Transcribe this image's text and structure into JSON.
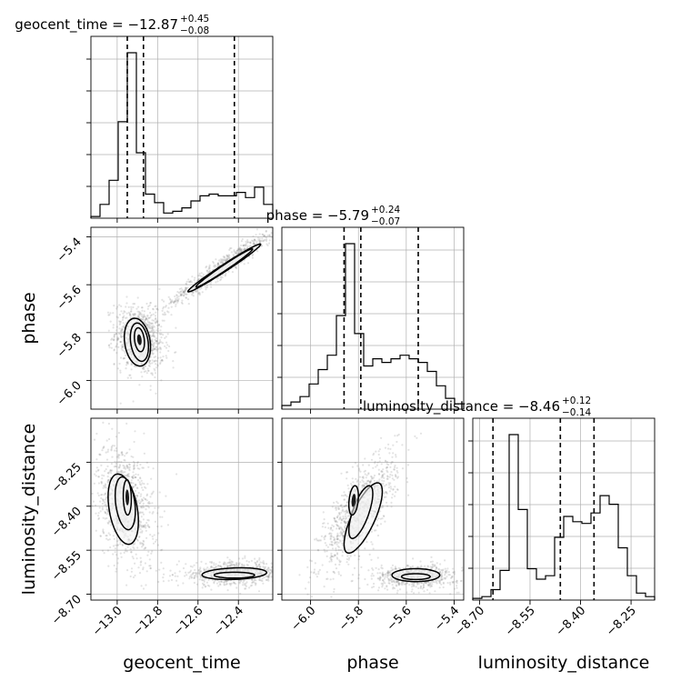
{
  "chart_data": [
    {
      "type": "histogram",
      "panel": "geocent_time",
      "title": "geocent_time = −12.87",
      "title_sup": "+0.45",
      "title_sub": "−0.08",
      "xlim": [
        -13.13,
        -12.23
      ],
      "bins": [
        -13.13,
        -13.085,
        -13.04,
        -12.995,
        -12.95,
        -12.905,
        -12.86,
        -12.815,
        -12.77,
        -12.725,
        -12.68,
        -12.635,
        -12.59,
        -12.545,
        -12.5,
        -12.455,
        -12.41,
        -12.365,
        -12.32,
        -12.275,
        -12.23
      ],
      "counts": [
        1,
        8,
        22,
        56,
        96,
        38,
        14,
        9,
        3,
        4,
        6,
        10,
        13,
        14,
        13,
        13,
        15,
        12,
        18,
        8
      ],
      "quantiles": [
        -12.95,
        -12.87,
        -12.42
      ],
      "grid": true
    },
    {
      "type": "histogram",
      "panel": "phase",
      "title": "phase = −5.79",
      "title_sup": "+0.24",
      "title_sub": "−0.07",
      "xlim": [
        -6.12,
        -5.36
      ],
      "bins": [
        -6.12,
        -6.082,
        -6.044,
        -6.006,
        -5.968,
        -5.93,
        -5.892,
        -5.854,
        -5.816,
        -5.778,
        -5.74,
        -5.702,
        -5.664,
        -5.626,
        -5.588,
        -5.55,
        -5.512,
        -5.474,
        -5.436,
        -5.398,
        -5.36
      ],
      "counts": [
        2,
        4,
        7,
        14,
        22,
        30,
        52,
        92,
        42,
        24,
        28,
        26,
        28,
        30,
        28,
        26,
        21,
        13,
        6,
        3
      ],
      "quantiles": [
        -5.86,
        -5.79,
        -5.55
      ],
      "grid": true
    },
    {
      "type": "histogram",
      "panel": "luminosity_distance",
      "title": "luminosity_distance = −8.46",
      "title_sup": "+0.12",
      "title_sub": "−0.14",
      "xlim": [
        -8.72,
        -8.18
      ],
      "bins": [
        -8.72,
        -8.693,
        -8.666,
        -8.639,
        -8.612,
        -8.585,
        -8.558,
        -8.531,
        -8.504,
        -8.477,
        -8.45,
        -8.423,
        -8.396,
        -8.369,
        -8.342,
        -8.315,
        -8.288,
        -8.261,
        -8.234,
        -8.207,
        -8.18
      ],
      "counts": [
        1,
        2,
        6,
        17,
        95,
        52,
        18,
        12,
        14,
        36,
        48,
        45,
        44,
        50,
        60,
        55,
        30,
        14,
        4,
        2
      ],
      "quantiles": [
        -8.66,
        -8.46,
        -8.36
      ],
      "grid": true
    },
    {
      "type": "scatter",
      "panel": "phase_vs_geocent_time",
      "x_param": "geocent_time",
      "y_param": "phase",
      "xlim": [
        -13.13,
        -12.23
      ],
      "ylim": [
        -6.12,
        -5.36
      ],
      "clusters": [
        {
          "x": -12.89,
          "y": -5.83,
          "sx": 0.06,
          "sy": 0.07,
          "rho": -0.2,
          "n": 900
        },
        {
          "x": -12.47,
          "y": -5.52,
          "sx": 0.15,
          "sy": 0.09,
          "rho": 0.97,
          "n": 700
        }
      ],
      "contours": [
        {
          "x": -12.89,
          "y": -5.83,
          "sx": 0.025,
          "sy": 0.05,
          "rho": -0.25
        },
        {
          "x": -12.89,
          "y": -5.84,
          "sx": 0.045,
          "sy": 0.08,
          "rho": -0.25
        },
        {
          "x": -12.9,
          "y": -5.84,
          "sx": 0.065,
          "sy": 0.1,
          "rho": -0.2
        },
        {
          "x": -12.47,
          "y": -5.53,
          "sx": 0.14,
          "sy": 0.08,
          "rho": 0.985
        },
        {
          "x": -12.47,
          "y": -5.53,
          "sx": 0.18,
          "sy": 0.1,
          "rho": 0.985
        }
      ],
      "grid": true
    },
    {
      "type": "scatter",
      "panel": "luminosity_distance_vs_geocent_time",
      "x_param": "geocent_time",
      "y_param": "luminosity_distance",
      "xlim": [
        -13.13,
        -12.23
      ],
      "ylim": [
        -8.72,
        -8.1
      ],
      "clusters": [
        {
          "x": -12.96,
          "y": -8.39,
          "sx": 0.07,
          "sy": 0.1,
          "rho": -0.3,
          "n": 900
        },
        {
          "x": -12.42,
          "y": -8.63,
          "sx": 0.14,
          "sy": 0.02,
          "rho": 0.1,
          "n": 700
        }
      ],
      "contours": [
        {
          "x": -12.95,
          "y": -8.37,
          "sx": 0.02,
          "sy": 0.06,
          "rho": -0.1
        },
        {
          "x": -12.96,
          "y": -8.39,
          "sx": 0.05,
          "sy": 0.09,
          "rho": -0.3
        },
        {
          "x": -12.97,
          "y": -8.41,
          "sx": 0.075,
          "sy": 0.12,
          "rho": -0.35
        },
        {
          "x": -12.42,
          "y": -8.635,
          "sx": 0.1,
          "sy": 0.01,
          "rho": 0.0
        },
        {
          "x": -12.42,
          "y": -8.63,
          "sx": 0.16,
          "sy": 0.02,
          "rho": 0.2
        }
      ],
      "grid": true
    },
    {
      "type": "scatter",
      "panel": "luminosity_distance_vs_phase",
      "x_param": "phase",
      "y_param": "luminosity_distance",
      "xlim": [
        -6.12,
        -5.36
      ],
      "ylim": [
        -8.72,
        -8.1
      ],
      "clusters": [
        {
          "x": -5.8,
          "y": -8.42,
          "sx": 0.08,
          "sy": 0.1,
          "rho": 0.75,
          "n": 900
        },
        {
          "x": -5.56,
          "y": -8.64,
          "sx": 0.09,
          "sy": 0.02,
          "rho": 0.0,
          "n": 600
        }
      ],
      "contours": [
        {
          "x": -5.82,
          "y": -8.38,
          "sx": 0.02,
          "sy": 0.05,
          "rho": 0.3
        },
        {
          "x": -5.79,
          "y": -8.42,
          "sx": 0.05,
          "sy": 0.09,
          "rho": 0.7
        },
        {
          "x": -5.78,
          "y": -8.44,
          "sx": 0.08,
          "sy": 0.12,
          "rho": 0.75
        },
        {
          "x": -5.56,
          "y": -8.64,
          "sx": 0.06,
          "sy": 0.01,
          "rho": 0.0
        },
        {
          "x": -5.56,
          "y": -8.635,
          "sx": 0.1,
          "sy": 0.022,
          "rho": 0.0
        }
      ],
      "grid": true
    }
  ],
  "axes": {
    "geocent_time": {
      "label": "geocent_time",
      "ticks": [
        -13.0,
        -12.8,
        -12.6,
        -12.4
      ],
      "tick_labels": [
        "−13.0",
        "−12.8",
        "−12.6",
        "−12.4"
      ]
    },
    "phase": {
      "label": "phase",
      "ticks": [
        -6.0,
        -5.8,
        -5.6,
        -5.4
      ],
      "tick_labels": [
        "−6.0",
        "−5.8",
        "−5.6",
        "−5.4"
      ]
    },
    "luminosity_distance": {
      "label": "luminosity_distance",
      "ticks": [
        -8.7,
        -8.55,
        -8.4,
        -8.25
      ],
      "tick_labels": [
        "−8.70",
        "−8.55",
        "−8.40",
        "−8.25"
      ]
    }
  },
  "colors": {
    "line": "#000000",
    "grid": "#b0b0b0",
    "points": "#7f7f7f"
  }
}
